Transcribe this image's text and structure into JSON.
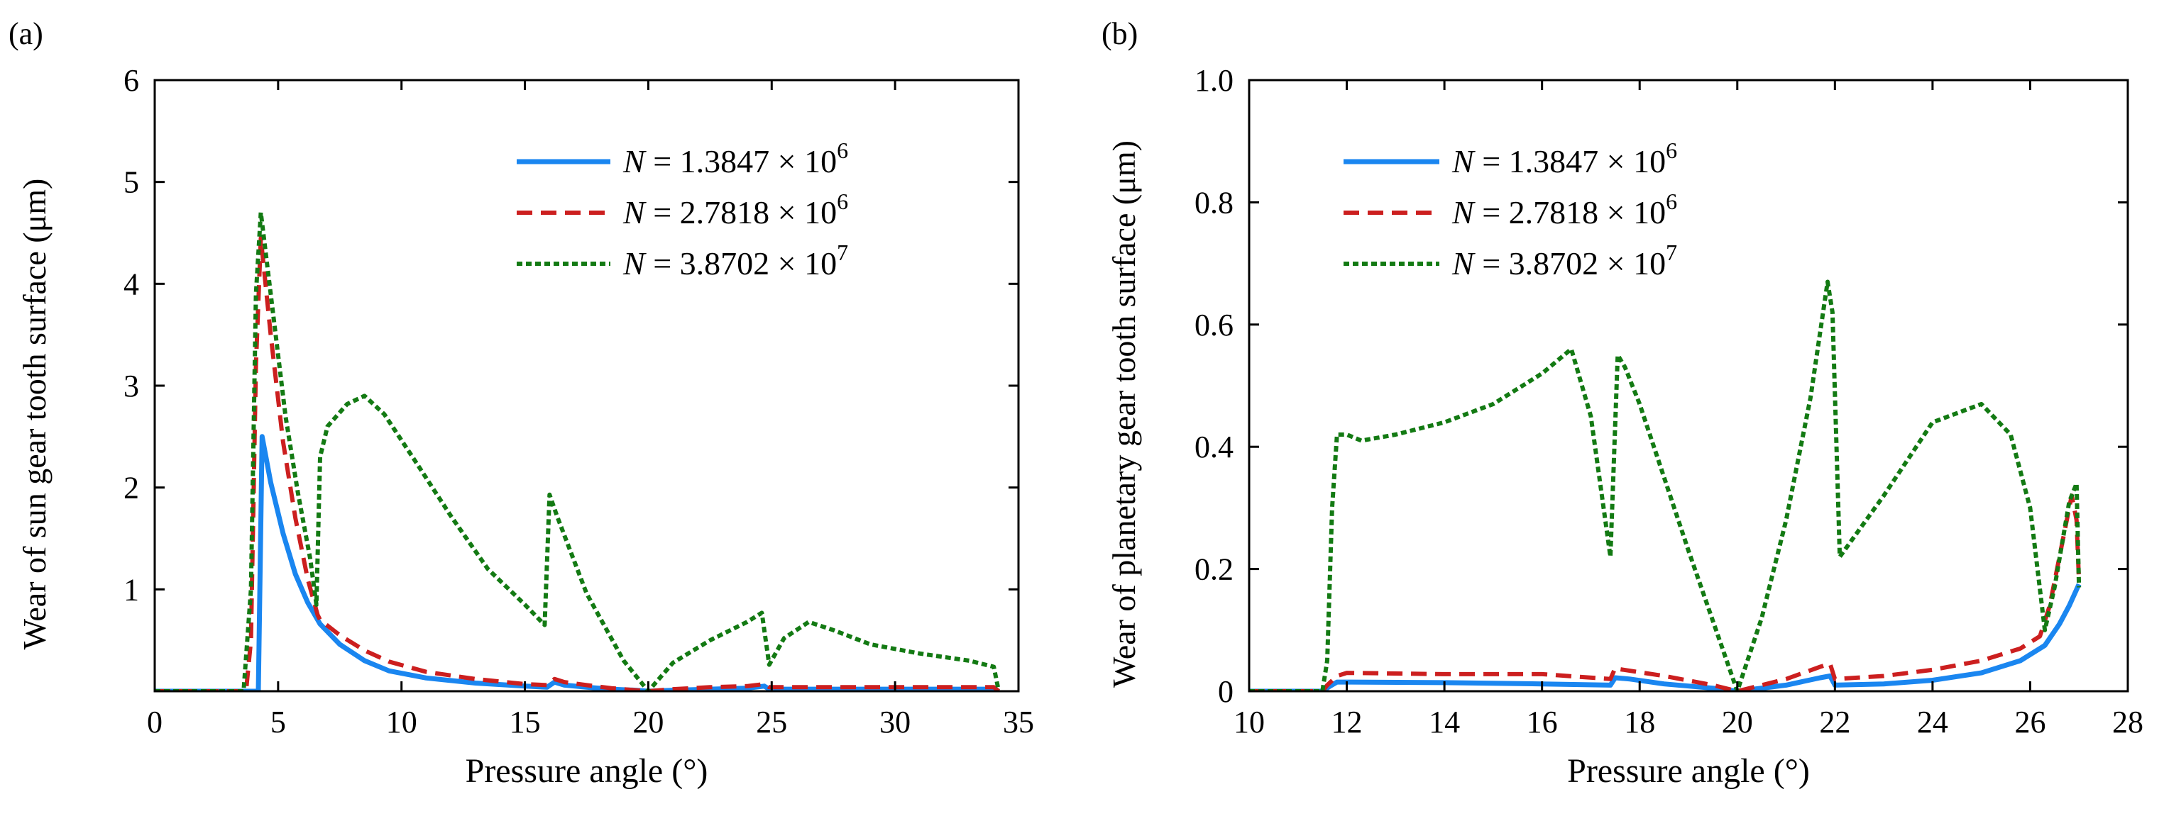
{
  "colors": {
    "blue": "#1a86f0",
    "red": "#cc1f1f",
    "green": "#137a13",
    "axis": "#000000"
  },
  "chart_data": [
    {
      "type": "line",
      "panel_label": "(a)",
      "title": "",
      "xlabel": "Pressure angle (°)",
      "ylabel": "Wear of sun gear tooth surface (μm)",
      "xlim": [
        0,
        35
      ],
      "ylim": [
        0,
        6
      ],
      "xticks": [
        0,
        5,
        10,
        15,
        20,
        25,
        30,
        35
      ],
      "yticks": [
        1,
        2,
        3,
        4,
        5,
        6
      ],
      "xtick_labels": [
        "0",
        "5",
        "10",
        "15",
        "20",
        "25",
        "30",
        "35"
      ],
      "ytick_labels": [
        "1",
        "2",
        "3",
        "4",
        "5",
        "6"
      ],
      "legend_position": "top-right",
      "series": [
        {
          "name": "N = 1.3847 × 10^6",
          "legend_var": "N",
          "legend_eq": " = 1.3847 × 10",
          "legend_exp": "6",
          "style": "solid",
          "color_key": "blue",
          "x": [
            0,
            3.75,
            3.8,
            4.0,
            4.2,
            4.35,
            4.7,
            5.2,
            5.7,
            6.2,
            6.7,
            7.5,
            8.5,
            9.5,
            11,
            13,
            15,
            15.9,
            16.2,
            16.6,
            17.5,
            18.5,
            19.5,
            20,
            21,
            22.5,
            24,
            24.7,
            24.9,
            26,
            28,
            30,
            32,
            34,
            34.2
          ],
          "y": [
            0,
            0,
            0,
            0,
            0,
            2.5,
            2.05,
            1.55,
            1.15,
            0.87,
            0.66,
            0.46,
            0.3,
            0.2,
            0.13,
            0.08,
            0.05,
            0.04,
            0.09,
            0.06,
            0.04,
            0.02,
            0.01,
            0,
            0.01,
            0.02,
            0.03,
            0.05,
            0.02,
            0.02,
            0.02,
            0.02,
            0.02,
            0.02,
            0
          ]
        },
        {
          "name": "N = 2.7818 × 10^6",
          "legend_var": "N",
          "legend_eq": " = 2.7818 × 10",
          "legend_exp": "6",
          "style": "dashed",
          "color_key": "red",
          "x": [
            0,
            3.6,
            3.7,
            3.9,
            4.1,
            4.3,
            4.7,
            5.2,
            5.7,
            6.2,
            6.6,
            6.7,
            7.5,
            8.5,
            9.5,
            11,
            13,
            15,
            15.9,
            16.2,
            16.6,
            17.5,
            18.5,
            19.5,
            20,
            21,
            22.5,
            24,
            24.7,
            24.9,
            26,
            28,
            30,
            32,
            34,
            34.2
          ],
          "y": [
            0,
            0,
            0,
            0.5,
            3.2,
            4.45,
            3.5,
            2.45,
            1.7,
            1.1,
            0.75,
            0.7,
            0.55,
            0.4,
            0.29,
            0.19,
            0.12,
            0.07,
            0.06,
            0.12,
            0.09,
            0.06,
            0.03,
            0.01,
            0,
            0.02,
            0.04,
            0.05,
            0.07,
            0.04,
            0.04,
            0.04,
            0.04,
            0.04,
            0.04,
            0
          ]
        },
        {
          "name": "N = 3.8702 × 10^7",
          "legend_var": "N",
          "legend_eq": " = 3.8702 × 10",
          "legend_exp": "7",
          "style": "dotted",
          "color_key": "green",
          "x": [
            0,
            3.5,
            3.6,
            3.9,
            4.1,
            4.3,
            4.8,
            5.3,
            5.8,
            6.3,
            6.55,
            6.7,
            7.0,
            7.8,
            8.5,
            9.3,
            10.5,
            12,
            13.5,
            15,
            15.8,
            16.0,
            16.3,
            17.5,
            19,
            20,
            21,
            22.5,
            24,
            24.6,
            24.9,
            25.5,
            26.5,
            27.5,
            29,
            31,
            33,
            34,
            34.2
          ],
          "y": [
            0,
            0,
            0,
            1.0,
            3.9,
            4.7,
            3.7,
            2.7,
            1.95,
            1.3,
            0.85,
            2.3,
            2.6,
            2.82,
            2.9,
            2.72,
            2.28,
            1.72,
            1.2,
            0.85,
            0.65,
            1.93,
            1.72,
            0.96,
            0.3,
            0,
            0.28,
            0.5,
            0.68,
            0.77,
            0.26,
            0.52,
            0.68,
            0.6,
            0.46,
            0.37,
            0.3,
            0.24,
            0
          ]
        }
      ]
    },
    {
      "type": "line",
      "panel_label": "(b)",
      "title": "",
      "xlabel": "Pressure angle (°)",
      "ylabel": "Wear of planetary gear tooth surface (μm)",
      "xlim": [
        10,
        28
      ],
      "ylim": [
        0,
        1.0
      ],
      "xticks": [
        10,
        12,
        14,
        16,
        18,
        20,
        22,
        24,
        26,
        28
      ],
      "yticks": [
        0,
        0.2,
        0.4,
        0.6,
        0.8,
        1.0
      ],
      "xtick_labels": [
        "10",
        "12",
        "14",
        "16",
        "18",
        "20",
        "22",
        "24",
        "26",
        "28"
      ],
      "ytick_labels": [
        "0",
        "0.2",
        "0.4",
        "0.6",
        "0.8",
        "1.0"
      ],
      "legend_position": "top-left",
      "series": [
        {
          "name": "N = 1.3847 × 10^6",
          "legend_var": "N",
          "legend_eq": " = 1.3847 × 10",
          "legend_exp": "6",
          "style": "solid",
          "color_key": "blue",
          "x": [
            10,
            11.5,
            11.65,
            11.8,
            12,
            14,
            16,
            17.4,
            17.5,
            17.8,
            18.5,
            19.5,
            20,
            21,
            21.7,
            21.9,
            22,
            23,
            24,
            25,
            25.8,
            26.3,
            26.6,
            26.8,
            27.0
          ],
          "y": [
            0,
            0,
            0.008,
            0.015,
            0.015,
            0.014,
            0.012,
            0.01,
            0.022,
            0.02,
            0.012,
            0.005,
            0,
            0.01,
            0.022,
            0.025,
            0.01,
            0.012,
            0.018,
            0.03,
            0.05,
            0.075,
            0.11,
            0.14,
            0.175
          ]
        },
        {
          "name": "N = 2.7818 × 10^6",
          "legend_var": "N",
          "legend_eq": " = 2.7818 × 10",
          "legend_exp": "6",
          "style": "dashed",
          "color_key": "red",
          "x": [
            10,
            11.5,
            11.6,
            11.8,
            12,
            14,
            16,
            17.4,
            17.5,
            17.6,
            18.5,
            19.5,
            20,
            21,
            21.7,
            21.9,
            22,
            23,
            24,
            25,
            25.8,
            26.2,
            26.4,
            26.7,
            26.85,
            26.95,
            27.0
          ],
          "y": [
            0,
            0,
            0.01,
            0.025,
            0.03,
            0.028,
            0.028,
            0.02,
            0.038,
            0.036,
            0.025,
            0.01,
            0,
            0.02,
            0.04,
            0.045,
            0.02,
            0.025,
            0.035,
            0.05,
            0.07,
            0.09,
            0.14,
            0.26,
            0.32,
            0.28,
            0.18
          ]
        },
        {
          "name": "N = 3.8702 × 10^7",
          "legend_var": "N",
          "legend_eq": " = 3.8702 × 10",
          "legend_exp": "7",
          "style": "dotted",
          "color_key": "green",
          "x": [
            10,
            11.5,
            11.6,
            11.7,
            11.8,
            12.0,
            12.3,
            13,
            14,
            15,
            16,
            16.6,
            17.0,
            17.4,
            17.55,
            17.7,
            18.0,
            19,
            20,
            20.5,
            21,
            21.5,
            21.85,
            21.95,
            22.1,
            23,
            24,
            25,
            25.6,
            26.0,
            26.3,
            26.5,
            26.8,
            26.95,
            27.0
          ],
          "y": [
            0,
            0,
            0.05,
            0.3,
            0.42,
            0.42,
            0.41,
            0.42,
            0.44,
            0.47,
            0.52,
            0.56,
            0.45,
            0.22,
            0.55,
            0.53,
            0.47,
            0.23,
            0,
            0.12,
            0.28,
            0.48,
            0.67,
            0.62,
            0.22,
            0.32,
            0.44,
            0.47,
            0.42,
            0.3,
            0.1,
            0.17,
            0.31,
            0.34,
            0.17
          ]
        }
      ]
    }
  ]
}
